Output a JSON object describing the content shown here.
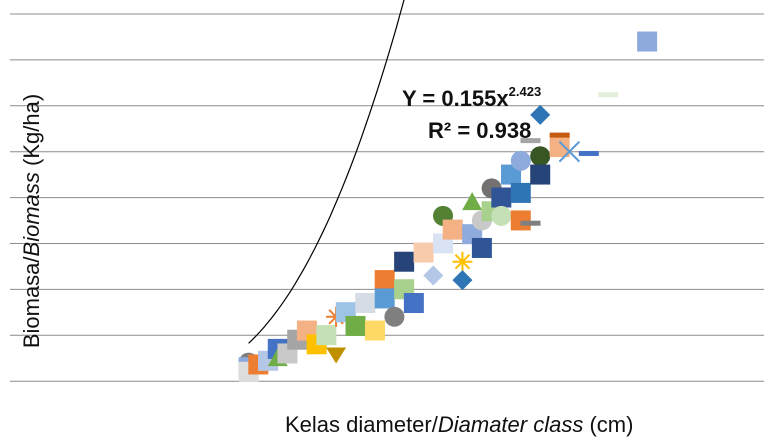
{
  "chart_data": {
    "type": "scatter",
    "title": "",
    "xlabel_plain": "Kelas diameter/",
    "xlabel_italic": "Diamater class",
    "xlabel_unit": " (cm)",
    "ylabel_plain": "Biomasa/",
    "ylabel_italic": "Biomass",
    "ylabel_unit": " (Kg/ha)",
    "grid": true,
    "legend": "none",
    "equation_text": "Y = 0.155x",
    "equation_exponent": "2.423",
    "r2_text": "R² = 0.938",
    "trendline": {
      "type": "power",
      "a": 0.155,
      "b": 2.423,
      "r2": 0.938
    },
    "points": [
      {
        "x": 10,
        "y": 20,
        "color": "#7f7f7f",
        "shape": "circle"
      },
      {
        "x": 10,
        "y": 15,
        "color": "#8ea9db",
        "shape": "square"
      },
      {
        "x": 10,
        "y": 10,
        "color": "#dddddd",
        "shape": "square"
      },
      {
        "x": 11,
        "y": 18,
        "color": "#ed7d31",
        "shape": "square"
      },
      {
        "x": 12,
        "y": 22,
        "color": "#b4c7e7",
        "shape": "square"
      },
      {
        "x": 13,
        "y": 35,
        "color": "#4472c4",
        "shape": "square"
      },
      {
        "x": 13,
        "y": 25,
        "color": "#70ad47",
        "shape": "triangle"
      },
      {
        "x": 14,
        "y": 30,
        "color": "#c9c9c9",
        "shape": "square"
      },
      {
        "x": 15,
        "y": 45,
        "color": "#a5a5a5",
        "shape": "square"
      },
      {
        "x": 16,
        "y": 55,
        "color": "#f4b183",
        "shape": "square"
      },
      {
        "x": 17,
        "y": 40,
        "color": "#ffc000",
        "shape": "square"
      },
      {
        "x": 18,
        "y": 50,
        "color": "#c5e0b4",
        "shape": "square"
      },
      {
        "x": 19,
        "y": 70,
        "color": "#ed7d31",
        "shape": "star"
      },
      {
        "x": 19,
        "y": 30,
        "color": "#bf8f00",
        "shape": "heart"
      },
      {
        "x": 20,
        "y": 75,
        "color": "#9dc3e6",
        "shape": "square"
      },
      {
        "x": 21,
        "y": 60,
        "color": "#70ad47",
        "shape": "square"
      },
      {
        "x": 22,
        "y": 85,
        "color": "#d6dce5",
        "shape": "square"
      },
      {
        "x": 23,
        "y": 55,
        "color": "#ffd966",
        "shape": "square"
      },
      {
        "x": 24,
        "y": 110,
        "color": "#ed7d31",
        "shape": "square"
      },
      {
        "x": 24,
        "y": 90,
        "color": "#5b9bd5",
        "shape": "square"
      },
      {
        "x": 25,
        "y": 70,
        "color": "#7f7f7f",
        "shape": "circle"
      },
      {
        "x": 26,
        "y": 130,
        "color": "#264478",
        "shape": "square"
      },
      {
        "x": 26,
        "y": 100,
        "color": "#a9d18e",
        "shape": "square"
      },
      {
        "x": 27,
        "y": 85,
        "color": "#4472c4",
        "shape": "square"
      },
      {
        "x": 28,
        "y": 140,
        "color": "#f8cbad",
        "shape": "square"
      },
      {
        "x": 29,
        "y": 115,
        "color": "#b4c7e7",
        "shape": "diamond"
      },
      {
        "x": 30,
        "y": 180,
        "color": "#548235",
        "shape": "circle"
      },
      {
        "x": 30,
        "y": 150,
        "color": "#dae3f3",
        "shape": "square"
      },
      {
        "x": 31,
        "y": 165,
        "color": "#f4b183",
        "shape": "square"
      },
      {
        "x": 32,
        "y": 130,
        "color": "#ffc000",
        "shape": "star"
      },
      {
        "x": 32,
        "y": 110,
        "color": "#2e75b6",
        "shape": "diamond"
      },
      {
        "x": 33,
        "y": 195,
        "color": "#70ad47",
        "shape": "triangle"
      },
      {
        "x": 33,
        "y": 160,
        "color": "#8faadc",
        "shape": "square"
      },
      {
        "x": 34,
        "y": 175,
        "color": "#c9c9c9",
        "shape": "circle"
      },
      {
        "x": 34,
        "y": 145,
        "color": "#2f5597",
        "shape": "square"
      },
      {
        "x": 35,
        "y": 210,
        "color": "#767171",
        "shape": "circle"
      },
      {
        "x": 35,
        "y": 185,
        "color": "#a9d18e",
        "shape": "square"
      },
      {
        "x": 36,
        "y": 200,
        "color": "#2f5597",
        "shape": "square"
      },
      {
        "x": 36,
        "y": 180,
        "color": "#c5e0b4",
        "shape": "circle"
      },
      {
        "x": 37,
        "y": 225,
        "color": "#5b9bd5",
        "shape": "square"
      },
      {
        "x": 38,
        "y": 240,
        "color": "#8faadc",
        "shape": "circle"
      },
      {
        "x": 38,
        "y": 205,
        "color": "#2e75b6",
        "shape": "square"
      },
      {
        "x": 38,
        "y": 175,
        "color": "#ed7d31",
        "shape": "square"
      },
      {
        "x": 39,
        "y": 262,
        "color": "#a5a5a5",
        "shape": "dash"
      },
      {
        "x": 39,
        "y": 172,
        "color": "#7f7f7f",
        "shape": "dash"
      },
      {
        "x": 40,
        "y": 245,
        "color": "#375623",
        "shape": "circle"
      },
      {
        "x": 40,
        "y": 225,
        "color": "#264478",
        "shape": "square"
      },
      {
        "x": 40,
        "y": 290,
        "color": "#2e75b6",
        "shape": "diamond"
      },
      {
        "x": 42,
        "y": 255,
        "color": "#f4b183",
        "shape": "square"
      },
      {
        "x": 42,
        "y": 268,
        "color": "#c55a11",
        "shape": "dash"
      },
      {
        "x": 43,
        "y": 250,
        "color": "#5b9bd5",
        "shape": "x"
      },
      {
        "x": 45,
        "y": 248,
        "color": "#4472c4",
        "shape": "dash"
      },
      {
        "x": 47,
        "y": 312,
        "color": "#e2efda",
        "shape": "dash"
      },
      {
        "x": 51,
        "y": 370,
        "color": "#8ea9db",
        "shape": "square"
      }
    ]
  }
}
